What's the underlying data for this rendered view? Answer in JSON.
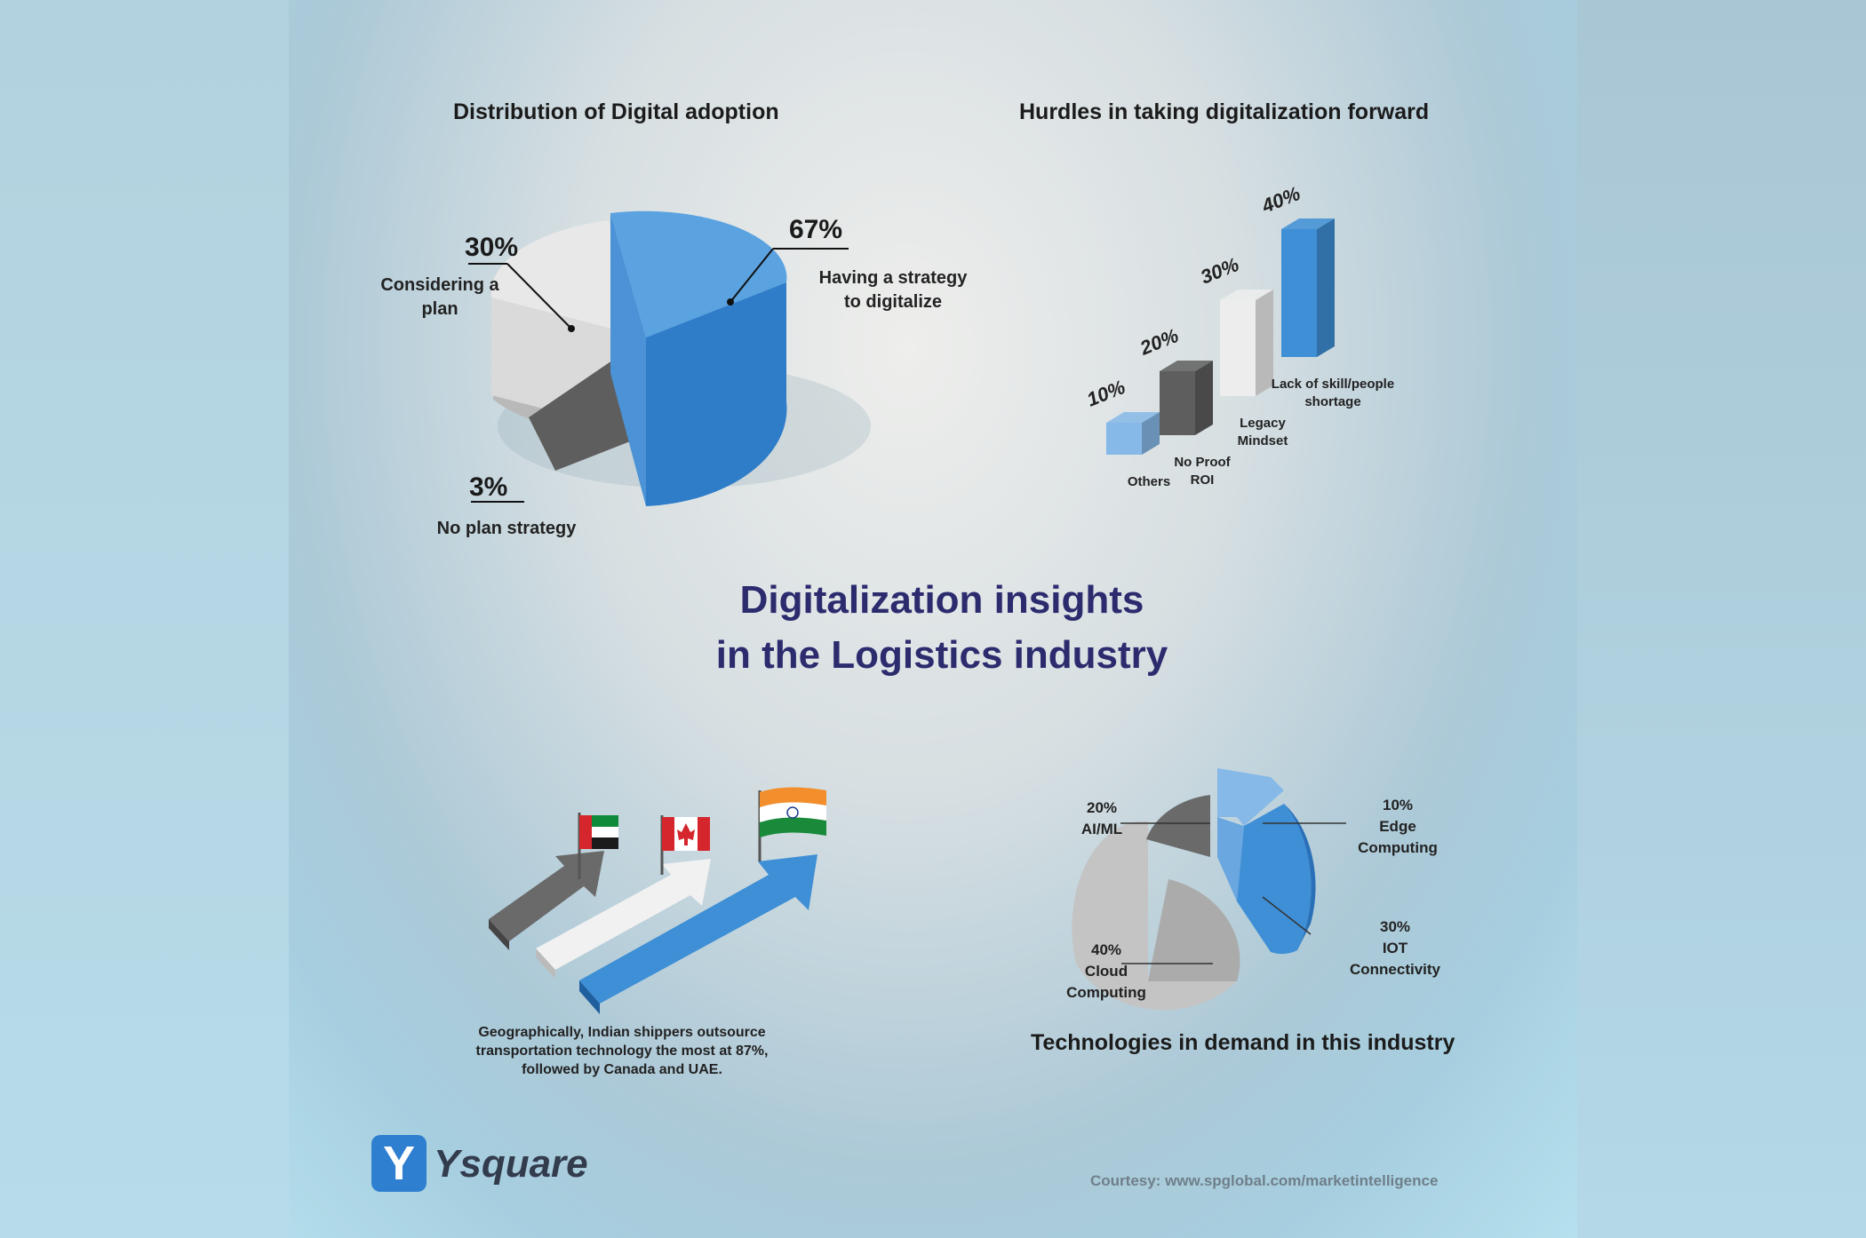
{
  "main_title": {
    "line1": "Digitalization insights",
    "line2": "in the Logistics industry"
  },
  "brand": {
    "name": "Ysquare",
    "letter": "Y",
    "color": "#2f7fd1"
  },
  "courtesy": "Courtesy: www.spglobal.com/marketintelligence",
  "geo_caption": {
    "line1": "Geographically, Indian shippers outsource",
    "line2": "transportation technology the most at 87%,",
    "line3": "followed by Canada and UAE."
  },
  "flags": [
    "uae-flag-icon",
    "canada-flag-icon",
    "india-flag-icon"
  ],
  "colors": {
    "blue": "#3e8fd6",
    "light_blue": "#86b9e8",
    "grey": "#646464",
    "white": "#e9e9e9",
    "title_navy": "#2b2b6e"
  },
  "chart_data": [
    {
      "type": "pie",
      "title": "Distribution of Digital adoption",
      "slices": [
        {
          "label_lines": [
            "Having a strategy",
            "to digitalize"
          ],
          "pct_text": "67%",
          "value": 67,
          "color": "#3e8fd6"
        },
        {
          "label_lines": [
            "Considering a",
            "plan"
          ],
          "pct_text": "30%",
          "value": 30,
          "color": "#e6e6e6"
        },
        {
          "label_lines": [
            "No plan strategy"
          ],
          "pct_text": "3%",
          "value": 3,
          "color": "#6a6a6a"
        }
      ]
    },
    {
      "type": "bar",
      "title": "Hurdles in taking digitalization forward",
      "categories": [
        "Others",
        "No Proof ROI",
        "Legacy Mindset",
        "Lack of skill/people shortage"
      ],
      "category_lines": [
        [
          "Others"
        ],
        [
          "No Proof",
          "ROI"
        ],
        [
          "Legacy",
          "Mindset"
        ],
        [
          "Lack of skill/people",
          "shortage"
        ]
      ],
      "values": [
        10,
        20,
        30,
        40
      ],
      "value_labels": [
        "10%",
        "20%",
        "30%",
        "40%"
      ],
      "colors": [
        "#86b9e8",
        "#5e5e5e",
        "#ededed",
        "#3e8fd6"
      ]
    },
    {
      "type": "pie",
      "title": "Technologies in demand in this industry",
      "slices": [
        {
          "label_lines": [
            "20%",
            "AI/ML"
          ],
          "value": 20,
          "color": "#6a6a6a"
        },
        {
          "label_lines": [
            "10%",
            "Edge",
            "Computing"
          ],
          "value": 10,
          "color": "#86b9e8"
        },
        {
          "label_lines": [
            "30%",
            "IOT",
            "Connectivity"
          ],
          "value": 30,
          "color": "#3e8fd6"
        },
        {
          "label_lines": [
            "40%",
            "Cloud",
            "Computing"
          ],
          "value": 40,
          "color": "#c4c4c4"
        }
      ]
    }
  ]
}
